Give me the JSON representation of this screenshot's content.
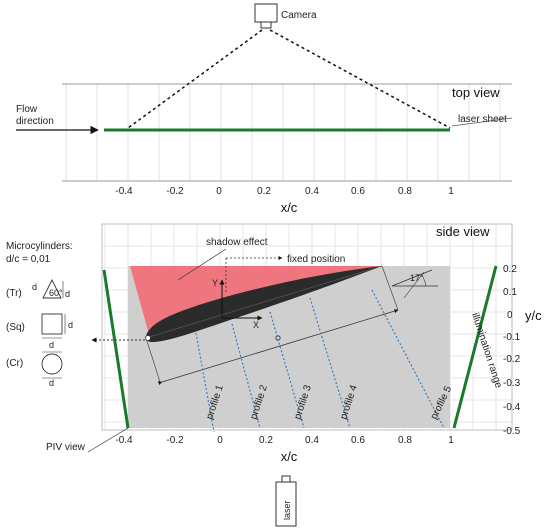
{
  "top_view": {
    "title": "top view",
    "camera_label": "Camera",
    "flow_direction": [
      "Flow",
      "direction"
    ],
    "laser_sheet": "laser sheet",
    "x_ticks": [
      "-0.4",
      "-0.2",
      "0",
      "0.2",
      "0.4",
      "0.6",
      "0.8",
      "1"
    ],
    "x_axis_label": "x/c"
  },
  "side_view": {
    "title": "side view",
    "shadow_effect": "shadow effect",
    "fixed_position": "fixed position",
    "angle_label": "17°",
    "axis_y_small": "Y",
    "axis_x_small": "X",
    "microcylinders_title": "Microcylinders:",
    "microcylinders_ratio": "d/c = 0,01",
    "shapes": [
      {
        "code": "(Tr)",
        "angle": "60°",
        "dim": "d"
      },
      {
        "code": "(Sq)",
        "dim": "d"
      },
      {
        "code": "(Cr)",
        "dim": "d"
      }
    ],
    "profiles": [
      "profile 1",
      "profile 2",
      "profile 3",
      "profile 4",
      "profile 5"
    ],
    "x_ticks": [
      "-0.4",
      "-0.2",
      "0",
      "0.2",
      "0.4",
      "0.6",
      "0.8",
      "1"
    ],
    "y_ticks": [
      "0.2",
      "0.1",
      "0",
      "-0.1",
      "-0.2",
      "-0.3",
      "-0.4",
      "-0.5"
    ],
    "x_axis_label": "x/c",
    "y_axis_label": "y/c",
    "illumination_range": "illumination range",
    "piv_view": "PIV view",
    "laser_label": "laser"
  },
  "colors": {
    "laser_green": "#1a7a2a",
    "shadow_red": "#f0707a",
    "piv_gray": "#cfcfcf",
    "profile_blue": "#3b7fc4",
    "airfoil": "#2b2b2b"
  }
}
